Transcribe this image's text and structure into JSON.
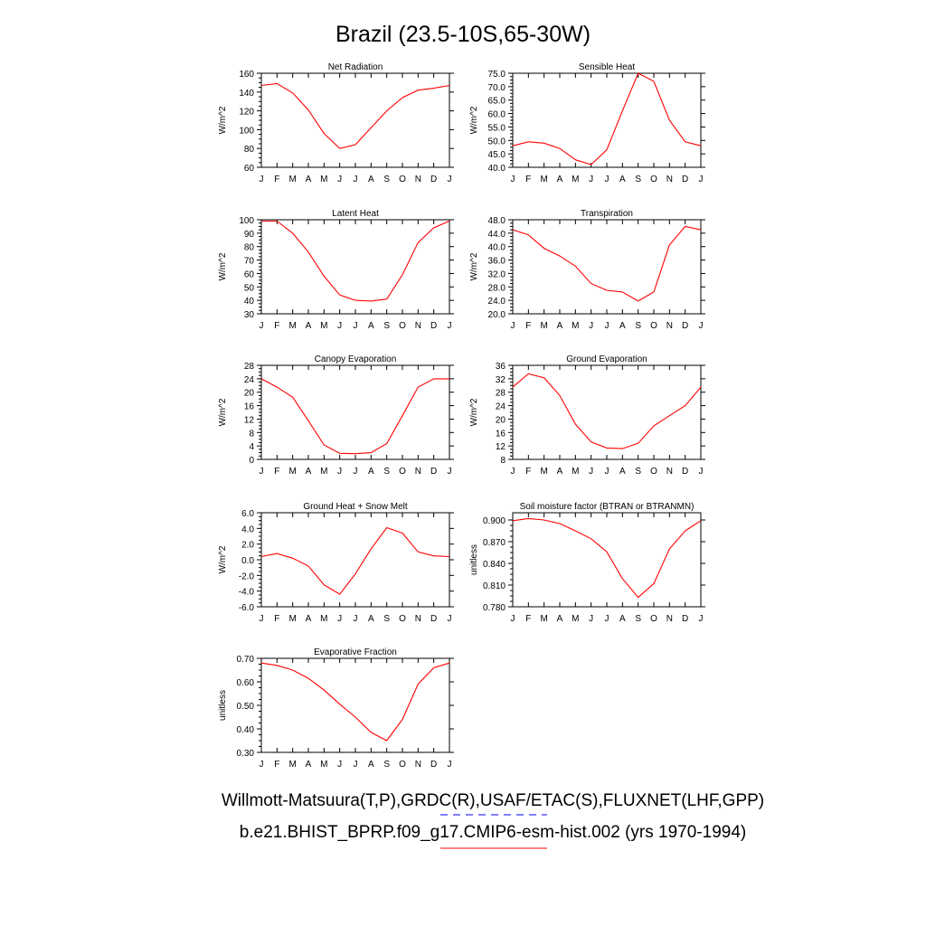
{
  "title": "Brazil (23.5-10S,65-30W)",
  "footer": {
    "obs": "Willmott-Matsuura(T,P),GRDC(R),USAF/ETAC(S),FLUXNET(LHF,GPP)",
    "model": "b.e21.BHIST_BPRP.f09_g17.CMIP6-esm-hist.002 (yrs 1970-1994)",
    "obs_color": "#0000ff",
    "model_color": "#ff0000"
  },
  "months": [
    "J",
    "F",
    "M",
    "A",
    "M",
    "J",
    "J",
    "A",
    "S",
    "O",
    "N",
    "D",
    "J"
  ],
  "chart_data": [
    {
      "type": "line",
      "title": "Net Radiation",
      "ylabel": "W/m^2",
      "ylim": [
        60,
        160
      ],
      "yticks": [
        "60",
        "80",
        "100",
        "120",
        "140",
        "160"
      ],
      "color": "#ff0000",
      "values": [
        147,
        149,
        139,
        121,
        96,
        80,
        84,
        102,
        120,
        134,
        142,
        144,
        147
      ]
    },
    {
      "type": "line",
      "title": "Sensible Heat",
      "ylabel": "W/m^2",
      "ylim": [
        40,
        75
      ],
      "yticks": [
        "40.0",
        "45.0",
        "50.0",
        "55.0",
        "60.0",
        "65.0",
        "70.0",
        "75.0"
      ],
      "color": "#ff0000",
      "values": [
        48.0,
        49.5,
        49.0,
        47.0,
        42.8,
        41.0,
        46.5,
        61.0,
        75.0,
        72.0,
        57.5,
        49.5,
        48.0
      ]
    },
    {
      "type": "line",
      "title": "Latent Heat",
      "ylabel": "W/m^2",
      "ylim": [
        30,
        100
      ],
      "yticks": [
        "30",
        "40",
        "50",
        "60",
        "70",
        "80",
        "90",
        "100"
      ],
      "color": "#ff0000",
      "values": [
        99,
        99,
        90,
        76,
        58,
        44,
        40,
        39.5,
        41,
        59,
        83,
        94,
        99
      ]
    },
    {
      "type": "line",
      "title": "Transpiration",
      "ylabel": "W/m^2",
      "ylim": [
        20,
        48
      ],
      "yticks": [
        "20.0",
        "24.0",
        "28.0",
        "32.0",
        "36.0",
        "40.0",
        "44.0",
        "48.0"
      ],
      "color": "#ff0000",
      "values": [
        45.0,
        43.5,
        39.5,
        37.2,
        34.2,
        29.0,
        27.0,
        26.5,
        23.8,
        26.5,
        40.5,
        46.0,
        45.0
      ]
    },
    {
      "type": "line",
      "title": "Canopy Evaporation",
      "ylabel": "W/m^2",
      "ylim": [
        0,
        28
      ],
      "yticks": [
        "0",
        "4",
        "8",
        "12",
        "16",
        "20",
        "24",
        "28"
      ],
      "color": "#ff0000",
      "values": [
        24.0,
        21.5,
        18.5,
        11.5,
        4.3,
        1.8,
        1.7,
        2.0,
        4.7,
        13.0,
        21.5,
        24.0,
        24.0
      ]
    },
    {
      "type": "line",
      "title": "Ground Evaporation",
      "ylabel": "W/m^2",
      "ylim": [
        8,
        36
      ],
      "yticks": [
        "8",
        "12",
        "16",
        "20",
        "24",
        "28",
        "32",
        "36"
      ],
      "color": "#ff0000",
      "values": [
        29.5,
        33.5,
        32.3,
        27.0,
        18.5,
        13.2,
        11.4,
        11.2,
        12.8,
        18.0,
        21.0,
        24.0,
        29.5
      ]
    },
    {
      "type": "line",
      "title": "Ground Heat + Snow Melt",
      "ylabel": "W/m^2",
      "ylim": [
        -6,
        6
      ],
      "yticks": [
        "-6.0",
        "-4.0",
        "-2.0",
        "0.0",
        "2.0",
        "4.0",
        "6.0"
      ],
      "color": "#ff0000",
      "values": [
        0.4,
        0.8,
        0.2,
        -0.8,
        -3.2,
        -4.4,
        -1.8,
        1.4,
        4.1,
        3.4,
        1.0,
        0.5,
        0.4
      ]
    },
    {
      "type": "line",
      "title": "Soil moisture factor (BTRAN or BTRANMN)",
      "ylabel": "unitless",
      "ylim": [
        0.78,
        0.91
      ],
      "yticks": [
        "0.780",
        "0.810",
        "0.840",
        "0.870",
        "0.900"
      ],
      "color": "#ff0000",
      "values": [
        0.899,
        0.902,
        0.9,
        0.895,
        0.885,
        0.874,
        0.856,
        0.819,
        0.793,
        0.812,
        0.86,
        0.885,
        0.899
      ]
    },
    {
      "type": "line",
      "title": "Evaporative Fraction",
      "ylabel": "unitless",
      "ylim": [
        0.3,
        0.7
      ],
      "yticks": [
        "0.30",
        "0.40",
        "0.50",
        "0.60",
        "0.70"
      ],
      "color": "#ff0000",
      "values": [
        0.68,
        0.67,
        0.65,
        0.615,
        0.565,
        0.505,
        0.45,
        0.385,
        0.35,
        0.44,
        0.59,
        0.66,
        0.68
      ]
    }
  ]
}
